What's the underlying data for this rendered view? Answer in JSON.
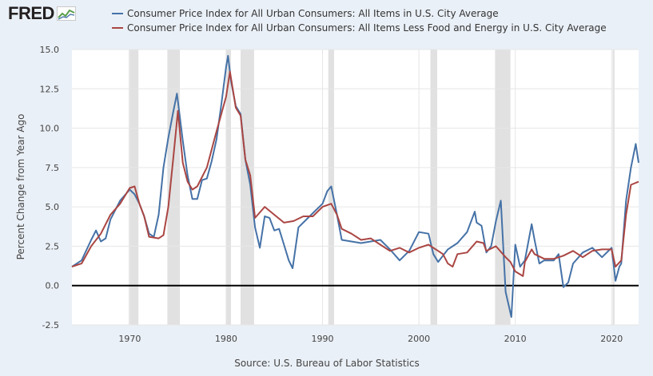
{
  "brand": {
    "name": "FRED"
  },
  "chart_data": {
    "type": "line",
    "title": "",
    "ylabel": "Percent Change from Year Ago",
    "source": "Source: U.S. Bureau of Labor Statistics",
    "xlim": [
      1964,
      2022.8
    ],
    "ylim": [
      -2.5,
      15
    ],
    "yticks": [
      -2.5,
      0.0,
      2.5,
      5.0,
      7.5,
      10.0,
      12.5,
      15.0
    ],
    "ytick_labels": [
      "-2.5",
      "0.0",
      "2.5",
      "5.0",
      "7.5",
      "10.0",
      "12.5",
      "15.0"
    ],
    "xticks": [
      1970,
      1980,
      1990,
      2000,
      2010,
      2020
    ],
    "xtick_labels": [
      "1970",
      "1980",
      "1990",
      "2000",
      "2010",
      "2020"
    ],
    "grid": true,
    "zero_line": true,
    "legend_position": "top",
    "recessions": [
      [
        1969.9,
        1970.9
      ],
      [
        1973.9,
        1975.2
      ],
      [
        1980.0,
        1980.5
      ],
      [
        1981.5,
        1982.9
      ],
      [
        1990.6,
        1991.2
      ],
      [
        2001.2,
        2001.9
      ],
      [
        2007.9,
        2009.5
      ],
      [
        2020.1,
        2020.3
      ]
    ],
    "series": [
      {
        "name": "Consumer Price Index for All Urban Consumers: All Items in U.S. City Average",
        "color": "#4572a7",
        "x": [
          1964,
          1965,
          1966,
          1966.5,
          1967,
          1967.5,
          1968,
          1969,
          1970,
          1970.5,
          1971,
          1971.5,
          1972,
          1972.5,
          1973,
          1973.5,
          1974,
          1974.5,
          1974.9,
          1975.5,
          1976,
          1976.5,
          1977,
          1977.5,
          1978,
          1978.5,
          1979,
          1979.5,
          1980,
          1980.2,
          1980.5,
          1981,
          1981.5,
          1982,
          1982.5,
          1983,
          1983.5,
          1984,
          1984.5,
          1985,
          1985.5,
          1986,
          1986.5,
          1986.9,
          1987.5,
          1988,
          1989,
          1990,
          1990.5,
          1990.9,
          1991.5,
          1992,
          1993,
          1994,
          1995,
          1996,
          1997,
          1998,
          1999,
          2000,
          2001,
          2001.5,
          2002,
          2002.5,
          2003,
          2004,
          2005,
          2005.8,
          2006,
          2006.5,
          2007,
          2007.5,
          2008,
          2008.5,
          2009,
          2009.6,
          2010,
          2010.5,
          2011,
          2011.7,
          2012,
          2012.5,
          2013,
          2014,
          2014.5,
          2015,
          2015.5,
          2016,
          2017,
          2018,
          2019,
          2020,
          2020.4,
          2020.8,
          2021,
          2021.5,
          2022,
          2022.5,
          2022.8
        ],
        "values": [
          1.2,
          1.6,
          2.9,
          3.5,
          2.8,
          3.0,
          4.2,
          5.4,
          6.1,
          5.8,
          5.2,
          4.4,
          3.3,
          3.1,
          4.5,
          7.5,
          9.4,
          11.0,
          12.2,
          9.2,
          7.0,
          5.5,
          5.5,
          6.7,
          6.8,
          7.9,
          9.3,
          11.5,
          13.9,
          14.6,
          13.0,
          11.4,
          10.9,
          8.0,
          6.4,
          3.7,
          2.4,
          4.4,
          4.3,
          3.5,
          3.6,
          2.6,
          1.6,
          1.1,
          3.7,
          4.0,
          4.6,
          5.2,
          6.0,
          6.3,
          4.5,
          2.9,
          2.8,
          2.7,
          2.8,
          2.9,
          2.3,
          1.6,
          2.2,
          3.4,
          3.3,
          2.0,
          1.5,
          1.9,
          2.3,
          2.7,
          3.4,
          4.7,
          4.0,
          3.8,
          2.1,
          2.5,
          4.1,
          5.4,
          -0.4,
          -2.0,
          2.6,
          1.2,
          1.6,
          3.9,
          2.9,
          1.4,
          1.6,
          1.6,
          2.0,
          -0.1,
          0.2,
          1.4,
          2.1,
          2.4,
          1.8,
          2.4,
          0.3,
          1.2,
          1.4,
          5.4,
          7.5,
          9.0,
          7.8
        ]
      },
      {
        "name": "Consumer Price Index for All Urban Consumers: All Items Less Food and Energy in U.S. City Average",
        "color": "#aa4643",
        "x": [
          1964,
          1965,
          1966,
          1967,
          1968,
          1969,
          1970,
          1970.5,
          1971,
          1971.5,
          1972,
          1973,
          1973.5,
          1974,
          1974.5,
          1975,
          1975.5,
          1976,
          1976.5,
          1977,
          1978,
          1979,
          1980,
          1980.4,
          1981,
          1981.5,
          1982,
          1982.5,
          1983,
          1984,
          1985,
          1986,
          1987,
          1988,
          1989,
          1990,
          1990.9,
          1991.5,
          1992,
          1993,
          1994,
          1995,
          1996,
          1997,
          1998,
          1999,
          2000,
          2001,
          2002,
          2002.5,
          2003,
          2003.5,
          2004,
          2005,
          2006,
          2006.7,
          2007,
          2008,
          2009,
          2009.5,
          2010,
          2010.8,
          2011,
          2011.7,
          2012,
          2013,
          2014,
          2015,
          2016,
          2017,
          2018,
          2019,
          2020,
          2020.4,
          2021,
          2021.5,
          2022,
          2022.8
        ],
        "values": [
          1.2,
          1.4,
          2.5,
          3.3,
          4.5,
          5.2,
          6.2,
          6.3,
          5.2,
          4.4,
          3.1,
          3.0,
          3.2,
          5.0,
          8.0,
          11.1,
          7.8,
          6.6,
          6.1,
          6.3,
          7.5,
          9.8,
          12.0,
          13.6,
          11.3,
          10.8,
          8.0,
          7.0,
          4.3,
          5.0,
          4.5,
          4.0,
          4.1,
          4.4,
          4.4,
          5.0,
          5.2,
          4.5,
          3.6,
          3.3,
          2.9,
          3.0,
          2.6,
          2.2,
          2.4,
          2.1,
          2.4,
          2.6,
          2.2,
          2.0,
          1.4,
          1.2,
          2.0,
          2.1,
          2.8,
          2.7,
          2.2,
          2.5,
          1.8,
          1.5,
          0.9,
          0.6,
          1.5,
          2.3,
          2.0,
          1.7,
          1.7,
          1.9,
          2.2,
          1.8,
          2.2,
          2.3,
          2.3,
          1.2,
          1.6,
          4.5,
          6.4,
          6.6
        ]
      }
    ]
  }
}
